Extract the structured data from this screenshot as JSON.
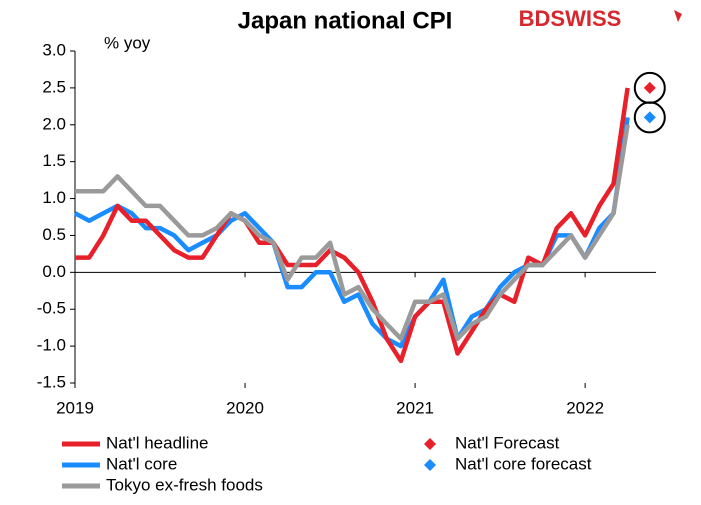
{
  "chart_data": {
    "type": "line",
    "title": "Japan national CPI",
    "logo": "BDSWISS",
    "y_label": "% yoy",
    "categories": [
      "2019",
      null,
      null,
      null,
      null,
      null,
      null,
      null,
      null,
      null,
      null,
      null,
      "2020",
      null,
      null,
      null,
      null,
      null,
      null,
      null,
      null,
      null,
      null,
      null,
      "2021",
      null,
      null,
      null,
      null,
      null,
      null,
      null,
      null,
      null,
      null,
      null,
      "2022",
      null,
      null,
      null,
      null
    ],
    "ylim": [
      -1.5,
      3.0
    ],
    "yticks": [
      -1.5,
      {
        "value": -1,
        "label": "-1.0"
      },
      -0.5,
      {
        "value": 0,
        "label": "0.0"
      },
      0.5,
      {
        "value": 1,
        "label": "1.0"
      },
      1.5,
      {
        "value": 2,
        "label": "2.0"
      },
      2.5,
      {
        "value": 3,
        "label": "3.0"
      }
    ],
    "grid": false,
    "legend": "bottom",
    "series": [
      {
        "name": "Nat'l headline",
        "color": "#e8202a",
        "kind": "line",
        "values": [
          0.2,
          0.2,
          0.5,
          0.9,
          0.7,
          0.7,
          0.5,
          0.3,
          0.2,
          0.2,
          0.5,
          0.8,
          0.7,
          0.4,
          0.4,
          0.1,
          0.1,
          0.1,
          0.3,
          0.2,
          0.0,
          -0.4,
          -0.9,
          -1.2,
          -0.6,
          -0.4,
          -0.4,
          -1.1,
          -0.8,
          -0.5,
          -0.3,
          -0.4,
          0.2,
          0.1,
          0.6,
          0.8,
          0.5,
          0.9,
          1.2,
          2.5,
          null
        ]
      },
      {
        "name": "Nat'l core",
        "color": "#1a8cff",
        "kind": "line",
        "values": [
          0.8,
          0.7,
          0.8,
          0.9,
          0.8,
          0.6,
          0.6,
          0.5,
          0.3,
          0.4,
          0.5,
          0.7,
          0.8,
          0.6,
          0.4,
          -0.2,
          -0.2,
          0.0,
          0.0,
          -0.4,
          -0.3,
          -0.7,
          -0.9,
          -1.0,
          -0.6,
          -0.4,
          -0.1,
          -0.9,
          -0.6,
          -0.5,
          -0.2,
          0.0,
          0.1,
          0.1,
          0.5,
          0.5,
          0.2,
          0.6,
          0.8,
          2.1,
          null
        ]
      },
      {
        "name": "Tokyo ex-fresh foods",
        "color": "#9a9a9a",
        "kind": "line",
        "values": [
          1.1,
          1.1,
          1.1,
          1.3,
          1.1,
          0.9,
          0.9,
          0.7,
          0.5,
          0.5,
          0.6,
          0.8,
          0.7,
          0.5,
          0.4,
          -0.1,
          0.2,
          0.2,
          0.4,
          -0.3,
          -0.2,
          -0.5,
          -0.7,
          -0.9,
          -0.4,
          -0.4,
          -0.3,
          -0.9,
          -0.7,
          -0.6,
          -0.3,
          -0.1,
          0.1,
          0.1,
          0.3,
          0.5,
          0.2,
          0.5,
          0.8,
          2.0,
          null
        ]
      },
      {
        "name": "Nat'l Forecast",
        "color": "#e8202a",
        "kind": "marker",
        "values": [
          null,
          null,
          null,
          null,
          null,
          null,
          null,
          null,
          null,
          null,
          null,
          null,
          null,
          null,
          null,
          null,
          null,
          null,
          null,
          null,
          null,
          null,
          null,
          null,
          null,
          null,
          null,
          null,
          null,
          null,
          null,
          null,
          null,
          null,
          null,
          null,
          null,
          null,
          null,
          null,
          2.5
        ]
      },
      {
        "name": "Nat'l core forecast",
        "color": "#1a8cff",
        "kind": "marker",
        "values": [
          null,
          null,
          null,
          null,
          null,
          null,
          null,
          null,
          null,
          null,
          null,
          null,
          null,
          null,
          null,
          null,
          null,
          null,
          null,
          null,
          null,
          null,
          null,
          null,
          null,
          null,
          null,
          null,
          null,
          null,
          null,
          null,
          null,
          null,
          null,
          null,
          null,
          null,
          null,
          null,
          2.1
        ]
      }
    ]
  }
}
